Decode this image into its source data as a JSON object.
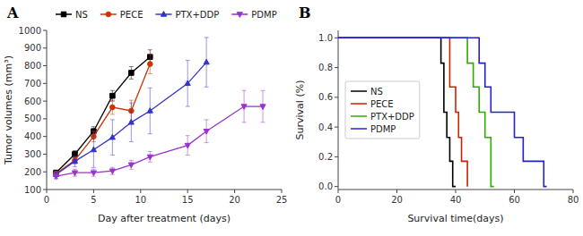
{
  "chart_data": [
    {
      "type": "line",
      "title": "A",
      "x_label": "Day after treatment (days)",
      "y_label": "Tumor volumes (mm³)",
      "x": [
        1,
        3,
        5,
        7,
        9,
        11,
        15,
        17,
        21,
        23
      ],
      "series": [
        {
          "name": "NS",
          "color": "#000000",
          "marker": "square",
          "values": [
            195,
            300,
            430,
            630,
            760,
            850,
            null,
            null,
            null,
            null
          ],
          "errors": [
            15,
            20,
            25,
            30,
            35,
            40,
            null,
            null,
            null,
            null
          ]
        },
        {
          "name": "PECE",
          "color": "#cc3300",
          "marker": "circle",
          "values": [
            190,
            265,
            400,
            565,
            545,
            810,
            null,
            null,
            null,
            null
          ],
          "errors": [
            15,
            20,
            30,
            40,
            60,
            55,
            null,
            null,
            null,
            null
          ]
        },
        {
          "name": "PTX+DDP",
          "color": "#3333cc",
          "marker": "triangle-up",
          "values": [
            185,
            260,
            325,
            395,
            480,
            545,
            700,
            820,
            null,
            null
          ],
          "errors": [
            20,
            30,
            100,
            100,
            110,
            130,
            130,
            140,
            null,
            null
          ]
        },
        {
          "name": "PDMP",
          "color": "#9933cc",
          "marker": "triangle-down",
          "values": [
            175,
            195,
            195,
            205,
            240,
            285,
            350,
            430,
            570,
            570
          ],
          "errors": [
            15,
            20,
            20,
            20,
            25,
            30,
            55,
            65,
            90,
            90
          ]
        }
      ],
      "xlim": [
        0,
        25
      ],
      "ylim": [
        100,
        1000
      ],
      "xticks": [
        0,
        5,
        10,
        15,
        20,
        25
      ],
      "yticks": [
        100,
        200,
        300,
        400,
        500,
        600,
        700,
        800,
        900,
        1000
      ],
      "grid": false,
      "legend": "top"
    },
    {
      "type": "step",
      "title": "B",
      "x_label": "Survival time(days)",
      "y_label": "Survival (%)",
      "series": [
        {
          "name": "NS",
          "color": "#000000",
          "x": [
            0,
            34,
            35,
            36,
            37,
            38,
            39,
            40
          ],
          "values": [
            1.0,
            1.0,
            0.83,
            0.5,
            0.33,
            0.17,
            0.0,
            0.0
          ]
        },
        {
          "name": "PECE",
          "color": "#cc2200",
          "x": [
            0,
            36,
            38,
            40,
            41,
            42,
            43,
            44
          ],
          "values": [
            1.0,
            1.0,
            0.67,
            0.5,
            0.33,
            0.17,
            0.17,
            0.0
          ]
        },
        {
          "name": "PTX+DDP",
          "color": "#33aa00",
          "x": [
            0,
            43,
            44,
            46,
            48,
            50,
            52,
            53
          ],
          "values": [
            1.0,
            1.0,
            0.83,
            0.67,
            0.5,
            0.33,
            0.0,
            0.0
          ]
        },
        {
          "name": "PDMP",
          "color": "#2222cc",
          "x": [
            0,
            46,
            48,
            50,
            52,
            57,
            60,
            63,
            65,
            70,
            71
          ],
          "values": [
            1.0,
            1.0,
            0.83,
            0.67,
            0.5,
            0.5,
            0.33,
            0.17,
            0.17,
            0.0,
            0.0
          ]
        }
      ],
      "xlim": [
        0,
        80
      ],
      "ylim": [
        -0.02,
        1.05
      ],
      "xticks": [
        0,
        20,
        40,
        60,
        80
      ],
      "yticks": [
        {
          "value": 0.0,
          "label": "0.0"
        },
        0.2,
        0.4,
        0.6,
        0.8,
        {
          "value": 1.0,
          "label": "1.0"
        }
      ],
      "grid": false,
      "legend": "left"
    }
  ]
}
